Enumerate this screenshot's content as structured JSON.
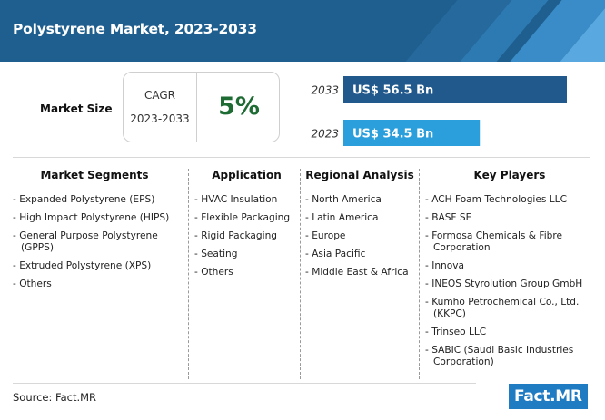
{
  "title": "Polystyrene Market, 2023-2033",
  "market_size": {
    "label": "Market Size",
    "cagr_label": "CAGR",
    "cagr_period": "2023-2033",
    "cagr_value": "5%"
  },
  "chart_data": {
    "type": "bar",
    "orientation": "horizontal",
    "categories": [
      "2033",
      "2023"
    ],
    "values": [
      56.5,
      34.5
    ],
    "value_labels": [
      "US$ 56.5 Bn",
      "US$ 34.5 Bn"
    ],
    "colors": [
      "#21598c",
      "#2a9fdc"
    ],
    "xlim": [
      0,
      56.5
    ],
    "grid": false
  },
  "columns": [
    {
      "heading": "Market Segments",
      "items": [
        "- Expanded Polystyrene (EPS)",
        "- High Impact Polystyrene (HIPS)",
        "- General Purpose Polystyrene (GPPS)",
        "- Extruded Polystyrene (XPS)",
        "- Others"
      ]
    },
    {
      "heading": "Application",
      "items": [
        "- HVAC Insulation",
        "- Flexible Packaging",
        "- Rigid Packaging",
        "- Seating",
        "- Others"
      ]
    },
    {
      "heading": "Regional Analysis",
      "items": [
        "- North America",
        "- Latin America",
        "- Europe",
        "- Asia Pacific",
        "- Middle East & Africa"
      ]
    },
    {
      "heading": "Key Players",
      "items": [
        "- ACH Foam Technologies LLC",
        "- BASF SE",
        "- Formosa Chemicals & Fibre Corporation",
        "- Innova",
        "- INEOS Styrolution Group GmbH",
        "- Kumho Petrochemical Co., Ltd. (KKPC)",
        "- Trinseo LLC",
        "- SABIC (Saudi Basic Industries Corporation)"
      ]
    }
  ],
  "source": "Source: Fact.MR",
  "logo": "Fact.MR"
}
